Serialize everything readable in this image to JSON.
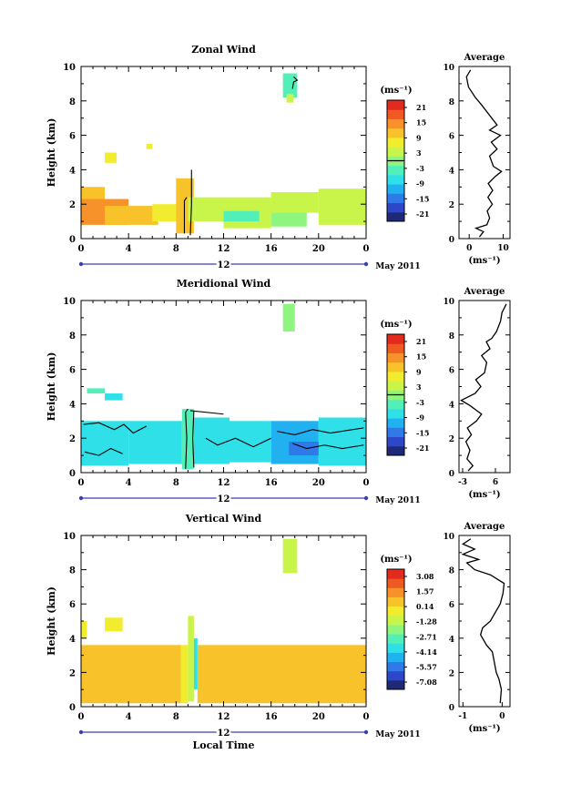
{
  "figure": {
    "time_axis_label": "Local Time",
    "date_label": "May 2011",
    "day_label": "12",
    "average_title": "Average",
    "unit_label": "(ms⁻¹)",
    "height_label": "Height (km)"
  },
  "colormap": [
    "#1e2a78",
    "#2e46c8",
    "#2f7ae8",
    "#21b1f0",
    "#2fe0e8",
    "#52f0b8",
    "#8ef57e",
    "#c9f54a",
    "#f2ec2e",
    "#f8c22a",
    "#f7922a",
    "#ef5a23",
    "#e22a1e"
  ],
  "chart_data": [
    {
      "type": "heatmap",
      "title": "Zonal Wind",
      "ylabel": "Height (km)",
      "xlabel": "",
      "x_ticks": [
        "0",
        "4",
        "8",
        "12",
        "16",
        "20",
        "0"
      ],
      "xlim": [
        0,
        24
      ],
      "ylim": [
        0,
        10
      ],
      "y_ticks": [
        "0",
        "2",
        "4",
        "6",
        "8",
        "10"
      ],
      "colorbar": {
        "unit": "(ms⁻¹)",
        "ticks": [
          "21",
          "15",
          "9",
          "3",
          "-3",
          "-9",
          "-15",
          "-21"
        ],
        "range": [
          -24,
          24
        ],
        "zero_line": true
      },
      "patches": [
        {
          "x0": 0.0,
          "x1": 2.0,
          "y0": 1.9,
          "y1": 3.0,
          "v": 12
        },
        {
          "x0": 0.0,
          "x1": 4.0,
          "y0": 0.8,
          "y1": 2.3,
          "v": 13
        },
        {
          "x0": 2.0,
          "x1": 6.5,
          "y0": 0.8,
          "y1": 1.9,
          "v": 11
        },
        {
          "x0": 6.0,
          "x1": 8.5,
          "y0": 1.0,
          "y1": 2.0,
          "v": 9
        },
        {
          "x0": 8.0,
          "x1": 9.5,
          "y0": 0.3,
          "y1": 3.5,
          "v": 12
        },
        {
          "x0": 9.0,
          "x1": 12.0,
          "y0": 1.0,
          "y1": 2.4,
          "v": 5
        },
        {
          "x0": 12.0,
          "x1": 16.0,
          "y0": 0.6,
          "y1": 2.4,
          "v": 4
        },
        {
          "x0": 12.0,
          "x1": 15.0,
          "y0": 1.0,
          "y1": 1.6,
          "v": -2
        },
        {
          "x0": 16.0,
          "x1": 19.0,
          "y0": 0.7,
          "y1": 2.0,
          "v": 0
        },
        {
          "x0": 16.0,
          "x1": 20.0,
          "y0": 1.5,
          "y1": 2.7,
          "v": 5
        },
        {
          "x0": 20.0,
          "x1": 24.0,
          "y0": 0.8,
          "y1": 2.9,
          "v": 4
        },
        {
          "x0": 2.0,
          "x1": 3.0,
          "y0": 4.4,
          "y1": 5.0,
          "v": 8
        },
        {
          "x0": 5.5,
          "x1": 6.0,
          "y0": 5.2,
          "y1": 5.5,
          "v": 7
        },
        {
          "x0": 17.0,
          "x1": 18.2,
          "y0": 8.2,
          "y1": 9.6,
          "v": -3
        },
        {
          "x0": 17.3,
          "x1": 17.9,
          "y0": 7.9,
          "y1": 8.4,
          "v": 4
        }
      ],
      "contours": [
        [
          [
            8.7,
            0.3
          ],
          [
            8.7,
            2.2
          ],
          [
            8.9,
            2.4
          ]
        ],
        [
          [
            9.2,
            0.2
          ],
          [
            9.3,
            2.0
          ],
          [
            9.3,
            4.0
          ]
        ],
        [
          [
            17.8,
            8.7
          ],
          [
            17.9,
            9.1
          ],
          [
            18.2,
            9.2
          ],
          [
            17.9,
            9.4
          ]
        ]
      ],
      "average": {
        "xlim": [
          -3,
          12
        ],
        "x_ticks": [
          "0",
          "10"
        ],
        "x_tick_values": [
          0,
          10
        ],
        "profile": [
          [
            3.0,
            0.1
          ],
          [
            4.2,
            0.4
          ],
          [
            2.0,
            0.6
          ],
          [
            5.2,
            0.8
          ],
          [
            6.0,
            1.2
          ],
          [
            5.3,
            1.6
          ],
          [
            6.8,
            2.0
          ],
          [
            5.5,
            2.4
          ],
          [
            6.9,
            2.8
          ],
          [
            5.6,
            3.2
          ],
          [
            7.6,
            3.6
          ],
          [
            9.5,
            3.9
          ],
          [
            7.1,
            4.2
          ],
          [
            6.0,
            4.8
          ],
          [
            8.2,
            5.2
          ],
          [
            6.5,
            5.6
          ],
          [
            9.2,
            6.0
          ],
          [
            6.0,
            6.3
          ],
          [
            8.2,
            6.6
          ],
          [
            3.5,
            7.8
          ],
          [
            1.8,
            8.2
          ],
          [
            -0.2,
            8.8
          ],
          [
            -0.8,
            9.4
          ],
          [
            0.4,
            9.8
          ]
        ]
      }
    },
    {
      "type": "heatmap",
      "title": "Meridional Wind",
      "ylabel": "Height (km)",
      "xlabel": "",
      "x_ticks": [
        "0",
        "4",
        "8",
        "12",
        "16",
        "20",
        "0"
      ],
      "xlim": [
        0,
        24
      ],
      "ylim": [
        0,
        10
      ],
      "y_ticks": [
        "0",
        "2",
        "4",
        "6",
        "8",
        "10"
      ],
      "colorbar": {
        "unit": "(ms⁻¹)",
        "ticks": [
          "21",
          "15",
          "9",
          "3",
          "-3",
          "-9",
          "-15",
          "-21"
        ],
        "range": [
          -24,
          24
        ],
        "zero_line": true
      },
      "patches": [
        {
          "x0": 0.0,
          "x1": 4.0,
          "y0": 0.4,
          "y1": 3.0,
          "v": -9
        },
        {
          "x0": 4.0,
          "x1": 8.5,
          "y0": 0.5,
          "y1": 3.0,
          "v": -7
        },
        {
          "x0": 8.5,
          "x1": 9.5,
          "y0": 0.2,
          "y1": 3.7,
          "v": -2
        },
        {
          "x0": 9.5,
          "x1": 12.5,
          "y0": 0.5,
          "y1": 3.2,
          "v": -8
        },
        {
          "x0": 12.5,
          "x1": 16.0,
          "y0": 0.6,
          "y1": 3.0,
          "v": -6
        },
        {
          "x0": 16.0,
          "x1": 20.0,
          "y0": 0.5,
          "y1": 3.0,
          "v": -10
        },
        {
          "x0": 20.0,
          "x1": 24.0,
          "y0": 0.4,
          "y1": 3.2,
          "v": -9
        },
        {
          "x0": 17.5,
          "x1": 20.0,
          "y0": 1.0,
          "y1": 1.8,
          "v": -14
        },
        {
          "x0": 2.0,
          "x1": 3.5,
          "y0": 4.2,
          "y1": 4.6,
          "v": -7
        },
        {
          "x0": 0.5,
          "x1": 2.0,
          "y0": 4.6,
          "y1": 4.9,
          "v": -5
        },
        {
          "x0": 17.0,
          "x1": 18.0,
          "y0": 8.2,
          "y1": 9.8,
          "v": 1
        }
      ],
      "contours": [
        [
          [
            0.2,
            2.8
          ],
          [
            1.5,
            2.9
          ],
          [
            2.8,
            2.5
          ],
          [
            3.6,
            2.8
          ],
          [
            4.4,
            2.3
          ],
          [
            5.5,
            2.7
          ]
        ],
        [
          [
            0.3,
            1.2
          ],
          [
            1.5,
            1.0
          ],
          [
            2.5,
            1.4
          ],
          [
            3.5,
            1.1
          ]
        ],
        [
          [
            8.8,
            0.2
          ],
          [
            8.9,
            2.0
          ],
          [
            8.8,
            3.5
          ],
          [
            9.0,
            3.7
          ]
        ],
        [
          [
            9.5,
            0.3
          ],
          [
            9.4,
            2.0
          ],
          [
            9.5,
            3.6
          ]
        ],
        [
          [
            9.2,
            3.6
          ],
          [
            12.0,
            3.4
          ]
        ],
        [
          [
            10.5,
            2.0
          ],
          [
            11.5,
            1.6
          ],
          [
            13.0,
            2.0
          ],
          [
            14.5,
            1.5
          ],
          [
            16.0,
            2.0
          ]
        ],
        [
          [
            16.5,
            2.4
          ],
          [
            18.0,
            2.2
          ],
          [
            19.5,
            2.5
          ],
          [
            21.0,
            2.3
          ],
          [
            23.8,
            2.6
          ]
        ],
        [
          [
            17.8,
            1.7
          ],
          [
            19.0,
            1.4
          ],
          [
            20.5,
            1.6
          ],
          [
            22.0,
            1.4
          ],
          [
            23.8,
            1.6
          ]
        ]
      ],
      "average": {
        "xlim": [
          -4,
          10
        ],
        "x_ticks": [
          "-3",
          "6"
        ],
        "x_tick_values": [
          -3,
          6
        ],
        "profile": [
          [
            -1.5,
            0.1
          ],
          [
            -0.2,
            0.4
          ],
          [
            -1.8,
            0.8
          ],
          [
            -1.0,
            1.3
          ],
          [
            -2.1,
            1.8
          ],
          [
            -0.6,
            2.2
          ],
          [
            -1.7,
            2.6
          ],
          [
            0.8,
            3.0
          ],
          [
            2.2,
            3.4
          ],
          [
            -1.0,
            3.9
          ],
          [
            -3.4,
            4.2
          ],
          [
            0.4,
            4.6
          ],
          [
            2.0,
            5.0
          ],
          [
            0.6,
            5.4
          ],
          [
            3.0,
            5.8
          ],
          [
            3.6,
            6.4
          ],
          [
            2.2,
            6.8
          ],
          [
            4.5,
            7.2
          ],
          [
            3.5,
            7.6
          ],
          [
            5.0,
            7.8
          ],
          [
            6.3,
            8.2
          ],
          [
            7.4,
            8.8
          ],
          [
            7.8,
            9.3
          ],
          [
            9.0,
            9.8
          ]
        ]
      }
    },
    {
      "type": "heatmap",
      "title": "Vertical Wind",
      "ylabel": "Height (km)",
      "xlabel": "Local Time",
      "x_ticks": [
        "0",
        "4",
        "8",
        "12",
        "16",
        "20",
        "0"
      ],
      "xlim": [
        0,
        24
      ],
      "ylim": [
        0,
        10
      ],
      "y_ticks": [
        "0",
        "2",
        "4",
        "6",
        "8",
        "10"
      ],
      "colorbar": {
        "unit": "(ms⁻¹)",
        "ticks": [
          "3.08",
          "1.57",
          "0.14",
          "-1.28",
          "-2.71",
          "-4.14",
          "-5.57",
          "-7.08"
        ],
        "range": [
          -7.8,
          3.8
        ],
        "zero_line": false
      },
      "patches": [
        {
          "x0": 0.0,
          "x1": 8.4,
          "y0": 0.2,
          "y1": 3.6,
          "v": 0.3
        },
        {
          "x0": 9.8,
          "x1": 24.0,
          "y0": 0.2,
          "y1": 3.6,
          "v": 0.4
        },
        {
          "x0": 8.4,
          "x1": 9.0,
          "y0": 0.2,
          "y1": 3.6,
          "v": 0.2
        },
        {
          "x0": 9.0,
          "x1": 9.5,
          "y0": 0.3,
          "y1": 5.3,
          "v": -1.4
        },
        {
          "x0": 9.5,
          "x1": 9.8,
          "y0": 1.0,
          "y1": 4.0,
          "v": -3.5
        },
        {
          "x0": 0.0,
          "x1": 0.5,
          "y0": 4.0,
          "y1": 5.0,
          "v": 0.2
        },
        {
          "x0": 2.0,
          "x1": 3.5,
          "y0": 4.4,
          "y1": 5.2,
          "v": -0.3
        },
        {
          "x0": 17.0,
          "x1": 18.2,
          "y0": 7.8,
          "y1": 9.8,
          "v": -1.0
        }
      ],
      "contours": [],
      "average": {
        "xlim": [
          -1.1,
          0.2
        ],
        "x_ticks": [
          "-1",
          "0"
        ],
        "x_tick_values": [
          -1,
          0
        ],
        "profile": [
          [
            -0.05,
            0.2
          ],
          [
            -0.02,
            1.0
          ],
          [
            -0.08,
            1.6
          ],
          [
            -0.15,
            2.0
          ],
          [
            -0.2,
            2.6
          ],
          [
            -0.25,
            3.2
          ],
          [
            -0.4,
            3.6
          ],
          [
            -0.55,
            4.2
          ],
          [
            -0.5,
            4.6
          ],
          [
            -0.3,
            5.0
          ],
          [
            -0.15,
            5.6
          ],
          [
            -0.05,
            6.0
          ],
          [
            0.02,
            6.6
          ],
          [
            0.05,
            7.2
          ],
          [
            -0.3,
            7.7
          ],
          [
            -0.7,
            8.0
          ],
          [
            -0.9,
            8.4
          ],
          [
            -0.6,
            8.6
          ],
          [
            -1.0,
            8.9
          ],
          [
            -0.7,
            9.2
          ],
          [
            -1.0,
            9.5
          ],
          [
            -0.8,
            9.8
          ]
        ]
      }
    }
  ]
}
